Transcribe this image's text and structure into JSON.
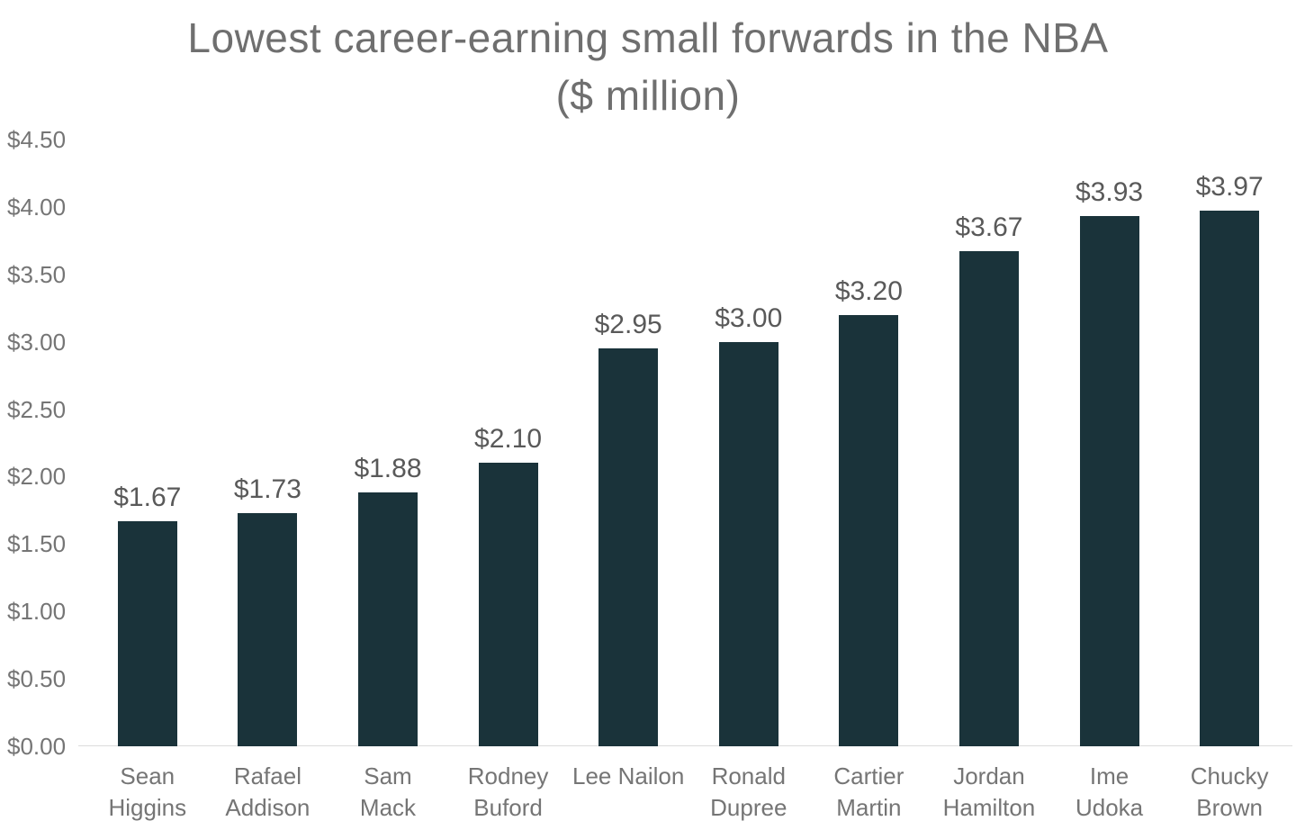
{
  "title": {
    "line1": "Lowest career-earning small forwards in the NBA",
    "line2": "($ million)"
  },
  "chart_data": {
    "type": "bar",
    "title": "Lowest career-earning small forwards in the NBA ($ million)",
    "categories": [
      [
        "Sean",
        "Higgins"
      ],
      [
        "Rafael",
        "Addison"
      ],
      [
        "Sam",
        "Mack"
      ],
      [
        "Rodney",
        "Buford"
      ],
      [
        "Lee Nailon"
      ],
      [
        "Ronald",
        "Dupree"
      ],
      [
        "Cartier",
        "Martin"
      ],
      [
        "Jordan",
        "Hamilton"
      ],
      [
        "Ime",
        "Udoka"
      ],
      [
        "Chucky",
        "Brown"
      ]
    ],
    "values": [
      1.67,
      1.73,
      1.88,
      2.1,
      2.95,
      3.0,
      3.2,
      3.67,
      3.93,
      3.97
    ],
    "data_labels": [
      "$1.67",
      "$1.73",
      "$1.88",
      "$2.10",
      "$2.95",
      "$3.00",
      "$3.20",
      "$3.67",
      "$3.93",
      "$3.97"
    ],
    "xlabel": "",
    "ylabel": "",
    "ylim": [
      0,
      4.5
    ],
    "yticks": [
      {
        "value": 0.0,
        "label": "$0.00"
      },
      {
        "value": 0.5,
        "label": "$0.50"
      },
      {
        "value": 1.0,
        "label": "$1.00"
      },
      {
        "value": 1.5,
        "label": "$1.50"
      },
      {
        "value": 2.0,
        "label": "$2.00"
      },
      {
        "value": 2.5,
        "label": "$2.50"
      },
      {
        "value": 3.0,
        "label": "$3.00"
      },
      {
        "value": 3.5,
        "label": "$3.50"
      },
      {
        "value": 4.0,
        "label": "$4.00"
      },
      {
        "value": 4.5,
        "label": "$4.50"
      }
    ],
    "grid": false,
    "legend": false,
    "data_labels_position": "above-bars",
    "colors": {
      "bar": "#1a333a",
      "title_text": "#6f6f6f",
      "axis_text": "#757575",
      "data_label_text": "#595959",
      "baseline": "#dcdcdc",
      "background": "#ffffff"
    }
  }
}
